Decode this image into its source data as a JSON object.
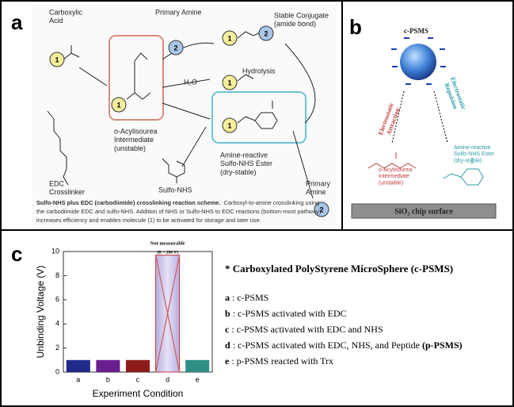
{
  "panel_a": {
    "label": "a",
    "carboxylic_acid": [
      "Carboxylic",
      "Acid"
    ],
    "primary_amine_top": [
      "Primary Amine"
    ],
    "stable_conjugate": [
      "Stable Conjugate",
      "(amide bond)"
    ],
    "hydrolysis": [
      "Hydrolysis"
    ],
    "water": [
      "H₂O"
    ],
    "intermediate": [
      "o-Acylisourea",
      "Intermediate",
      "(unstable)"
    ],
    "edc": [
      "EDC",
      "Crosslinker"
    ],
    "ester": [
      "Amine-reactive",
      "Sulfo-NHS Ester",
      "(dry-stable)"
    ],
    "sulfo_nhs": [
      "Sulfo-NHS"
    ],
    "primary_amine_bottom": [
      "Primary",
      "Amine"
    ],
    "badges": [
      "1",
      "2",
      "1",
      "2",
      "1",
      "1",
      "1",
      "2"
    ],
    "caption": {
      "bold": "Sulfo-NHS plus EDC (carbodiimide) crosslinking reaction scheme.",
      "lines": [
        "Carboxyl-to-amine crosslinking using",
        "the carbodiimide EDC and sulfo-NHS. Addition of NHS or Sulfo-NHS to EDC reactions (bottom-most pathway)",
        "increases efficiency and enables molecule (1) to be activated for storage and later use."
      ]
    }
  },
  "panel_b": {
    "label": "b",
    "sphere": [
      "c-PSMS"
    ],
    "attraction": [
      "Electrostatic",
      "Attraction"
    ],
    "repulsion": [
      "Electrostatic",
      "Repulsion"
    ],
    "intermediate": [
      "o-Acylisourea",
      "Intermediate",
      "(unstable)"
    ],
    "ester": [
      "Amine-reactive",
      "Sulfo-NHS Ester",
      "(dry-stable)"
    ],
    "surface": [
      "SiO₂ chip surface"
    ]
  },
  "panel_c": {
    "label": "c",
    "legend_title": "* Carboxylated PolyStyrene MicroSphere (c-PSMS)",
    "items": [
      {
        "key": "a",
        "text": ": c-PSMS"
      },
      {
        "key": "b",
        "text": ": c-PSMS activated with EDC"
      },
      {
        "key": "c",
        "text": ": c-PSMS activated with EDC and NHS"
      },
      {
        "key": "d",
        "text": ": c-PSMS activated with EDC, NHS, and Peptide",
        "bold": "(p-PSMS)"
      },
      {
        "key": "e",
        "text": ": p-PSMS reacted with Trx"
      }
    ]
  },
  "chart_data": {
    "type": "bar",
    "x_label": "Experiment Condition",
    "y_label": "Unbinding Voltage (V)",
    "categories": [
      "a",
      "b",
      "c",
      "d",
      "e"
    ],
    "values": [
      1,
      1,
      1,
      9.7,
      1
    ],
    "colors": [
      "#1f2a8a",
      "#6b1f8f",
      "#8e1a1a",
      "#c9c0e6",
      "#2f8f84"
    ],
    "annotations": [
      "Not measurable",
      "(B > 260 V)"
    ],
    "ylim": [
      0,
      10
    ],
    "yticks": [
      0,
      2,
      4,
      6,
      8,
      10
    ]
  }
}
